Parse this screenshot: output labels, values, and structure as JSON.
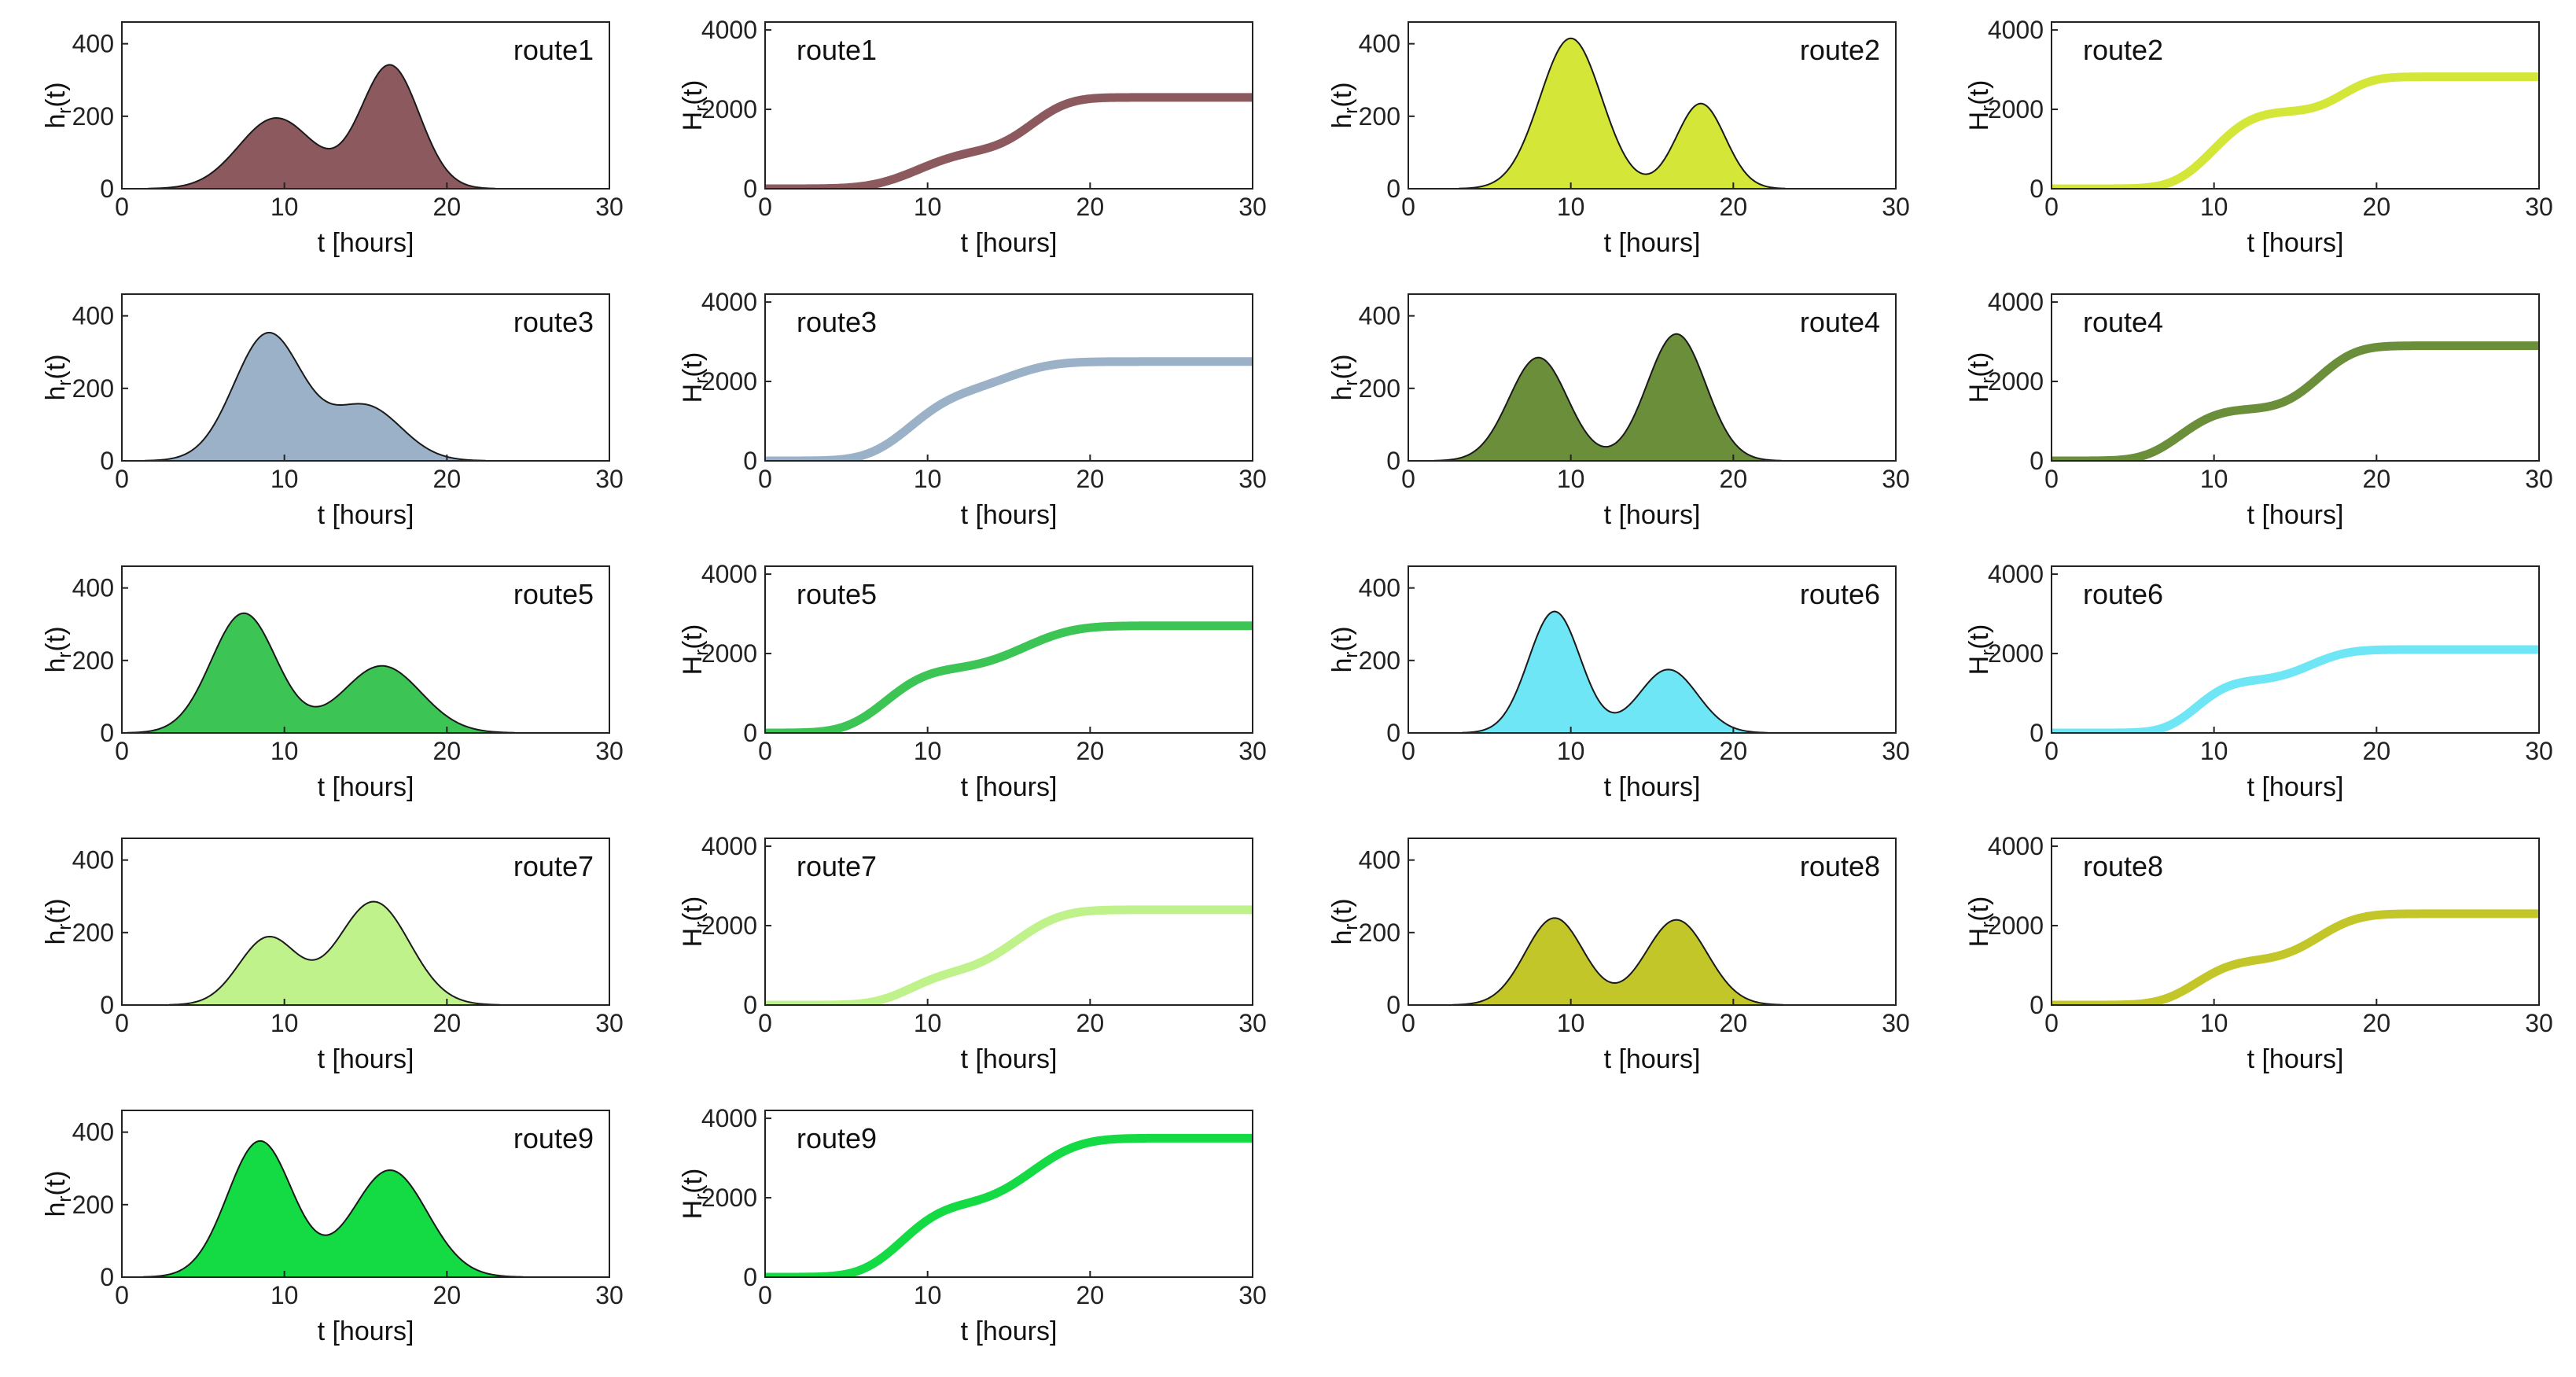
{
  "chart_data": [
    {
      "type": "area",
      "panel": "h",
      "route": "route1",
      "ylabel": "h_r(t)",
      "xlabel": "t [hours]",
      "xlim": [
        0,
        30
      ],
      "ylim": [
        0,
        460
      ],
      "xticks": [
        0,
        10,
        20,
        30
      ],
      "yticks": [
        0,
        200,
        400
      ],
      "color": "#8C5A5E",
      "peaks": [
        {
          "mu": 9.5,
          "amp": 195,
          "sigma": 2.3
        },
        {
          "mu": 16.5,
          "amp": 340,
          "sigma": 1.8
        }
      ]
    },
    {
      "type": "line",
      "panel": "H",
      "route": "route1",
      "ylabel": "H_r(t)",
      "xlabel": "t [hours]",
      "xlim": [
        0,
        30
      ],
      "ylim": [
        0,
        4200
      ],
      "xticks": [
        0,
        10,
        20,
        30
      ],
      "yticks": [
        0,
        2000,
        4000
      ],
      "color": "#8C5A5E",
      "final_value": 2300
    },
    {
      "type": "area",
      "panel": "h",
      "route": "route2",
      "ylabel": "h_r(t)",
      "xlabel": "t [hours]",
      "xlim": [
        0,
        30
      ],
      "ylim": [
        0,
        460
      ],
      "xticks": [
        0,
        10,
        20,
        30
      ],
      "yticks": [
        0,
        200,
        400
      ],
      "color": "#D4E637",
      "peaks": [
        {
          "mu": 10,
          "amp": 415,
          "sigma": 1.9
        },
        {
          "mu": 18,
          "amp": 235,
          "sigma": 1.5
        }
      ]
    },
    {
      "type": "line",
      "panel": "H",
      "route": "route2",
      "ylabel": "H_r(t)",
      "xlabel": "t [hours]",
      "xlim": [
        0,
        30
      ],
      "ylim": [
        0,
        4200
      ],
      "xticks": [
        0,
        10,
        20,
        30
      ],
      "yticks": [
        0,
        2000,
        4000
      ],
      "color": "#D4E637",
      "final_value": 2820
    },
    {
      "type": "area",
      "panel": "h",
      "route": "route3",
      "ylabel": "h_r(t)",
      "xlabel": "t [hours]",
      "xlim": [
        0,
        30
      ],
      "ylim": [
        0,
        460
      ],
      "xticks": [
        0,
        10,
        20,
        30
      ],
      "yticks": [
        0,
        200,
        400
      ],
      "color": "#9BB1C8",
      "peaks": [
        {
          "mu": 9,
          "amp": 350,
          "sigma": 2.1
        },
        {
          "mu": 15,
          "amp": 150,
          "sigma": 2.2
        }
      ]
    },
    {
      "type": "line",
      "panel": "H",
      "route": "route3",
      "ylabel": "H_r(t)",
      "xlabel": "t [hours]",
      "xlim": [
        0,
        30
      ],
      "ylim": [
        0,
        4200
      ],
      "xticks": [
        0,
        10,
        20,
        30
      ],
      "yticks": [
        0,
        2000,
        4000
      ],
      "color": "#9BB1C8",
      "final_value": 2500
    },
    {
      "type": "area",
      "panel": "h",
      "route": "route4",
      "ylabel": "h_r(t)",
      "xlabel": "t [hours]",
      "xlim": [
        0,
        30
      ],
      "ylim": [
        0,
        460
      ],
      "xticks": [
        0,
        10,
        20,
        30
      ],
      "yticks": [
        0,
        200,
        400
      ],
      "color": "#6B8E3A",
      "peaks": [
        {
          "mu": 8,
          "amp": 285,
          "sigma": 1.8
        },
        {
          "mu": 16.5,
          "amp": 350,
          "sigma": 1.8
        }
      ]
    },
    {
      "type": "line",
      "panel": "H",
      "route": "route4",
      "ylabel": "H_r(t)",
      "xlabel": "t [hours]",
      "xlim": [
        0,
        30
      ],
      "ylim": [
        0,
        4200
      ],
      "xticks": [
        0,
        10,
        20,
        30
      ],
      "yticks": [
        0,
        2000,
        4000
      ],
      "color": "#6B8E3A",
      "final_value": 2900
    },
    {
      "type": "area",
      "panel": "h",
      "route": "route5",
      "ylabel": "h_r(t)",
      "xlabel": "t [hours]",
      "xlim": [
        0,
        30
      ],
      "ylim": [
        0,
        460
      ],
      "xticks": [
        0,
        10,
        20,
        30
      ],
      "yticks": [
        0,
        200,
        400
      ],
      "color": "#3CC455",
      "peaks": [
        {
          "mu": 7.5,
          "amp": 330,
          "sigma": 2.0
        },
        {
          "mu": 16,
          "amp": 185,
          "sigma": 2.4
        }
      ]
    },
    {
      "type": "line",
      "panel": "H",
      "route": "route5",
      "ylabel": "H_r(t)",
      "xlabel": "t [hours]",
      "xlim": [
        0,
        30
      ],
      "ylim": [
        0,
        4200
      ],
      "xticks": [
        0,
        10,
        20,
        30
      ],
      "yticks": [
        0,
        2000,
        4000
      ],
      "color": "#3CC455",
      "final_value": 2700
    },
    {
      "type": "area",
      "panel": "h",
      "route": "route6",
      "ylabel": "h_r(t)",
      "xlabel": "t [hours]",
      "xlim": [
        0,
        30
      ],
      "ylim": [
        0,
        460
      ],
      "xticks": [
        0,
        10,
        20,
        30
      ],
      "yticks": [
        0,
        200,
        400
      ],
      "color": "#6EE6F5",
      "peaks": [
        {
          "mu": 9,
          "amp": 335,
          "sigma": 1.6
        },
        {
          "mu": 16,
          "amp": 175,
          "sigma": 1.8
        }
      ]
    },
    {
      "type": "line",
      "panel": "H",
      "route": "route6",
      "ylabel": "H_r(t)",
      "xlabel": "t [hours]",
      "xlim": [
        0,
        30
      ],
      "ylim": [
        0,
        4200
      ],
      "xticks": [
        0,
        10,
        20,
        30
      ],
      "yticks": [
        0,
        2000,
        4000
      ],
      "color": "#6EE6F5",
      "final_value": 2100
    },
    {
      "type": "area",
      "panel": "h",
      "route": "route7",
      "ylabel": "h_r(t)",
      "xlabel": "t [hours]",
      "xlim": [
        0,
        30
      ],
      "ylim": [
        0,
        460
      ],
      "xticks": [
        0,
        10,
        20,
        30
      ],
      "yticks": [
        0,
        200,
        400
      ],
      "color": "#C0F28C",
      "peaks": [
        {
          "mu": 9,
          "amp": 185,
          "sigma": 1.8
        },
        {
          "mu": 15.5,
          "amp": 285,
          "sigma": 2.2
        }
      ]
    },
    {
      "type": "line",
      "panel": "H",
      "route": "route7",
      "ylabel": "H_r(t)",
      "xlabel": "t [hours]",
      "xlim": [
        0,
        30
      ],
      "ylim": [
        0,
        4200
      ],
      "xticks": [
        0,
        10,
        20,
        30
      ],
      "yticks": [
        0,
        2000,
        4000
      ],
      "color": "#C0F28C",
      "final_value": 2400
    },
    {
      "type": "area",
      "panel": "h",
      "route": "route8",
      "ylabel": "h_r(t)",
      "xlabel": "t [hours]",
      "xlim": [
        0,
        30
      ],
      "ylim": [
        0,
        460
      ],
      "xticks": [
        0,
        10,
        20,
        30
      ],
      "yticks": [
        0,
        200,
        400
      ],
      "color": "#C3C628",
      "peaks": [
        {
          "mu": 9,
          "amp": 240,
          "sigma": 1.8
        },
        {
          "mu": 16.5,
          "amp": 235,
          "sigma": 1.9
        }
      ]
    },
    {
      "type": "line",
      "panel": "H",
      "route": "route8",
      "ylabel": "H_r(t)",
      "xlabel": "t [hours]",
      "xlim": [
        0,
        30
      ],
      "ylim": [
        0,
        4200
      ],
      "xticks": [
        0,
        10,
        20,
        30
      ],
      "yticks": [
        0,
        2000,
        4000
      ],
      "color": "#C3C628",
      "final_value": 2300
    },
    {
      "type": "area",
      "panel": "h",
      "route": "route9",
      "ylabel": "h_r(t)",
      "xlabel": "t [hours]",
      "xlim": [
        0,
        30
      ],
      "ylim": [
        0,
        460
      ],
      "xticks": [
        0,
        10,
        20,
        30
      ],
      "yticks": [
        0,
        200,
        400
      ],
      "color": "#14DB44",
      "peaks": [
        {
          "mu": 8.5,
          "amp": 375,
          "sigma": 2.0
        },
        {
          "mu": 16.5,
          "amp": 295,
          "sigma": 2.3
        }
      ]
    },
    {
      "type": "line",
      "panel": "H",
      "route": "route9",
      "ylabel": "H_r(t)",
      "xlabel": "t [hours]",
      "xlim": [
        0,
        30
      ],
      "ylim": [
        0,
        4200
      ],
      "xticks": [
        0,
        10,
        20,
        30
      ],
      "yticks": [
        0,
        2000,
        4000
      ],
      "color": "#14DB44",
      "final_value": 3500
    }
  ]
}
